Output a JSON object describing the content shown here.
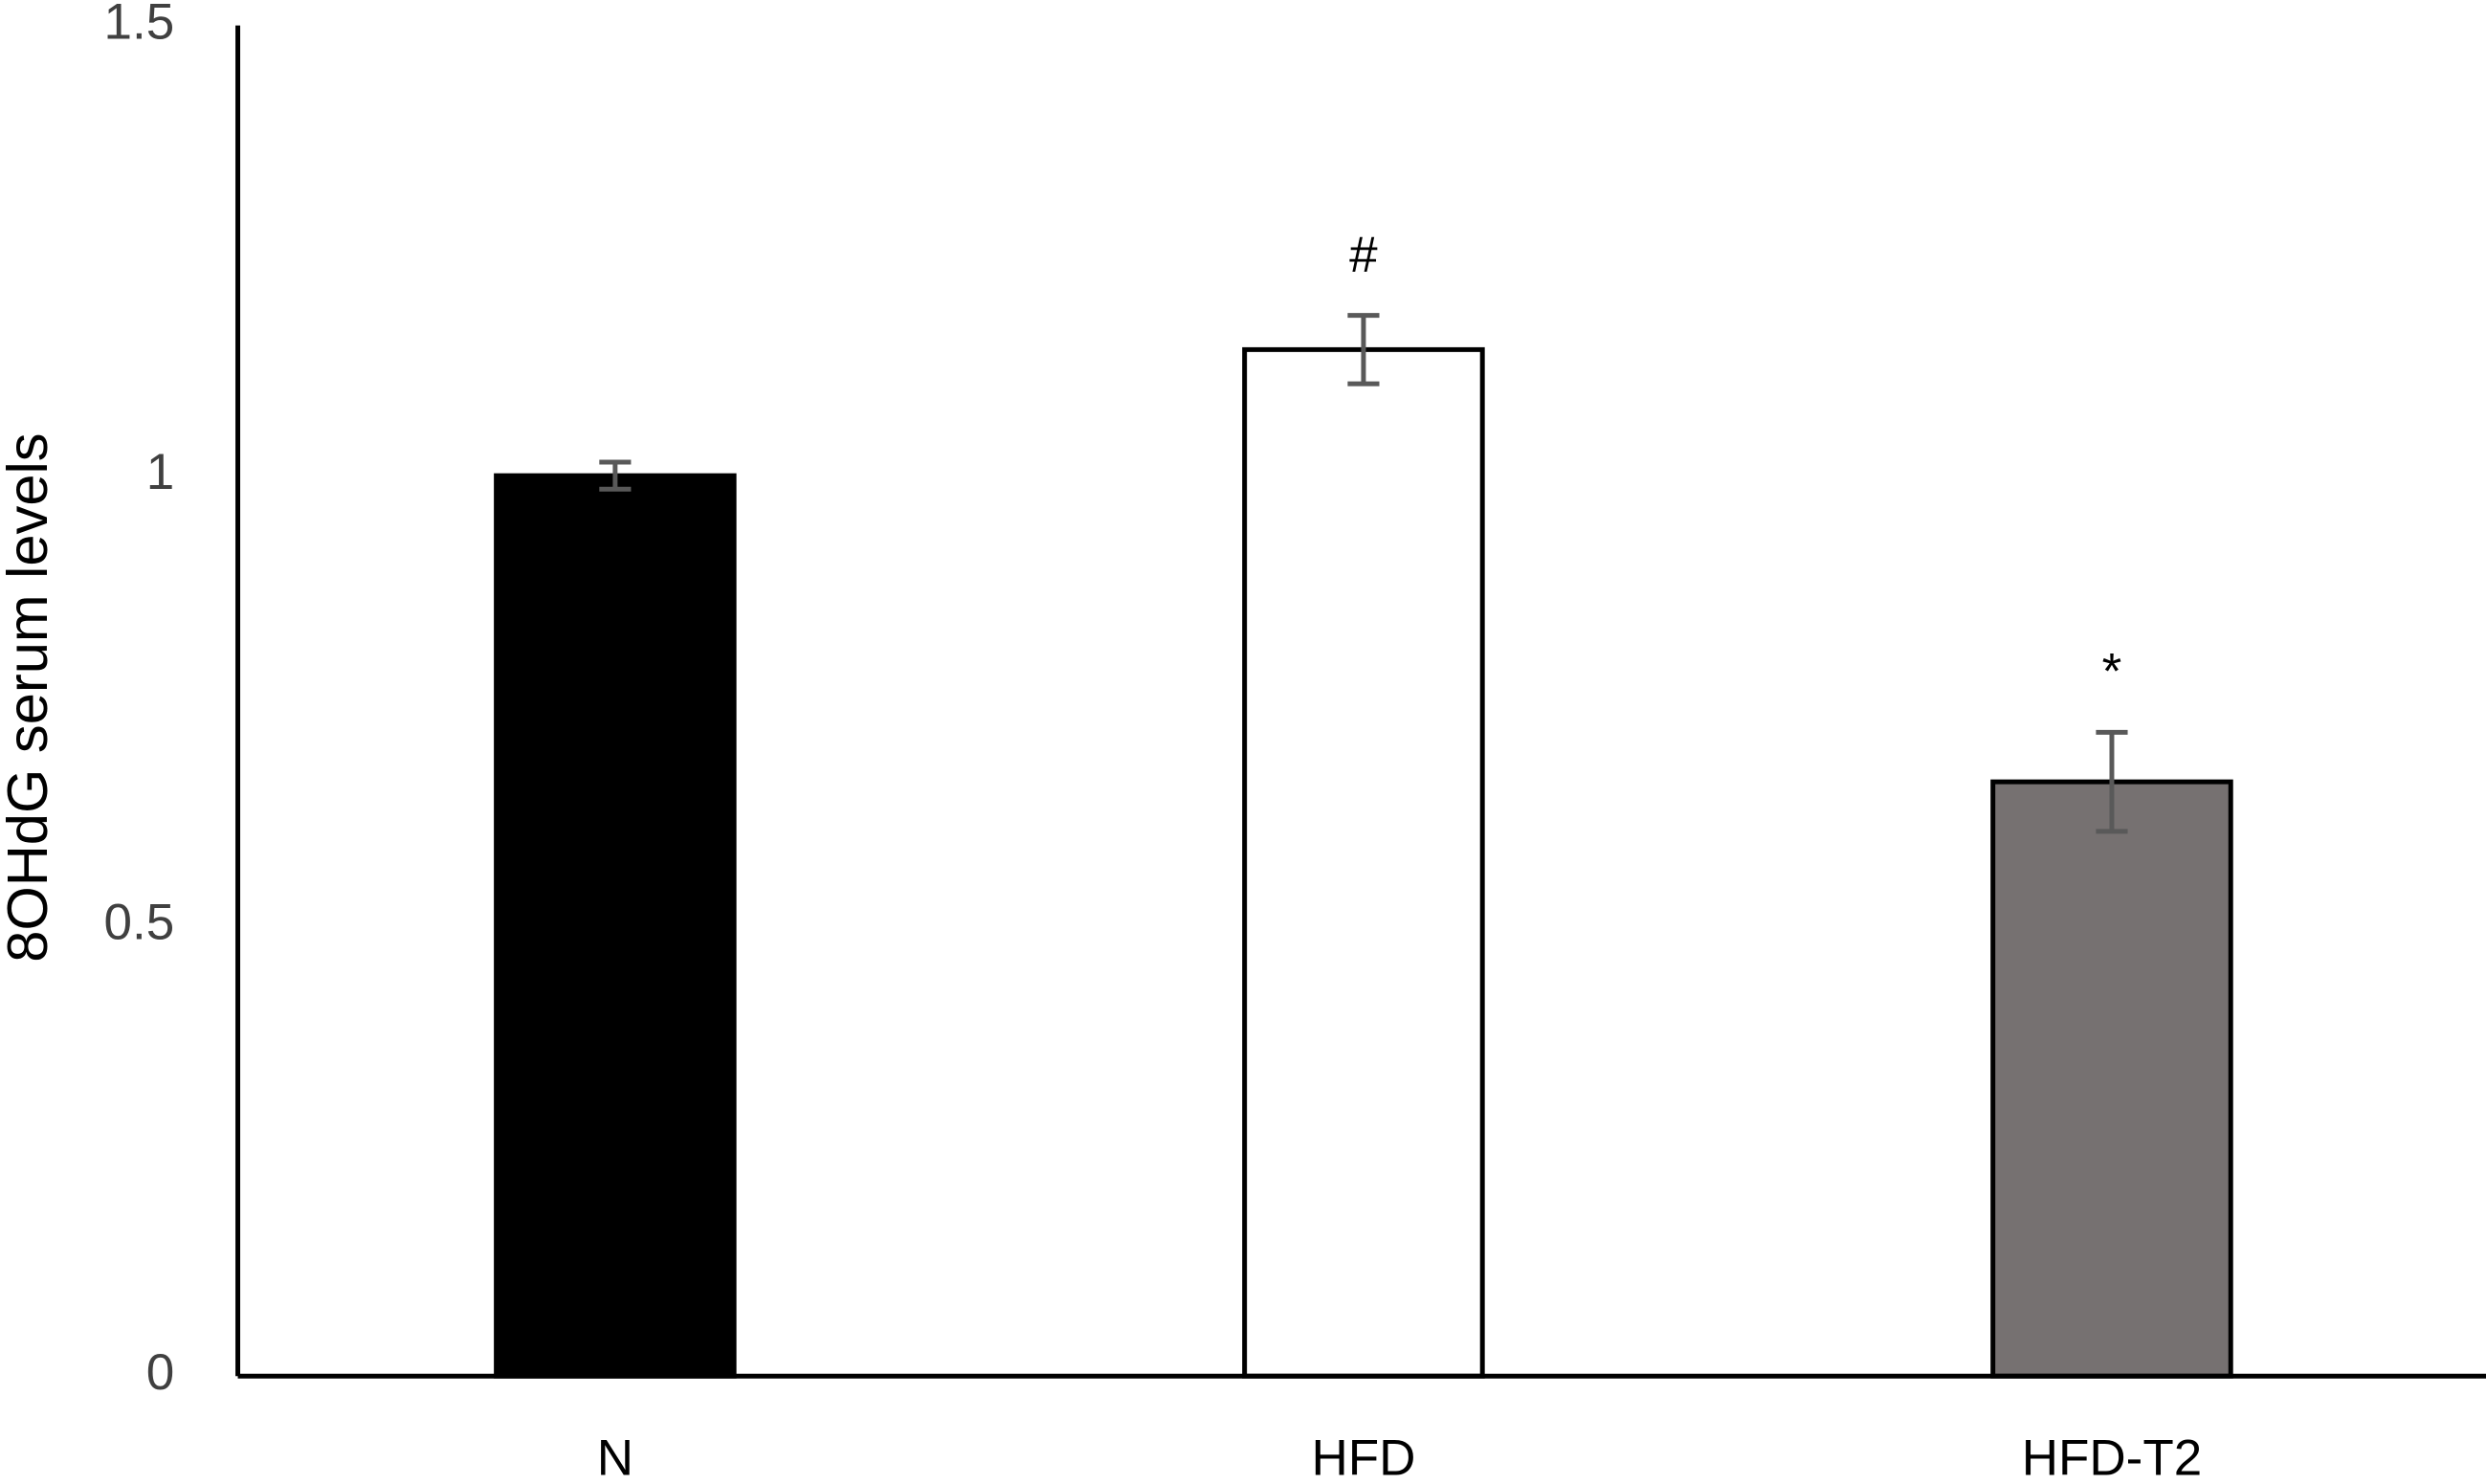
{
  "chart_data": {
    "type": "bar",
    "y_label": "8OHdG serum levels",
    "categories": [
      "N",
      "HFD",
      "HFD-T2"
    ],
    "values": [
      1.0,
      1.14,
      0.66
    ],
    "errors": [
      0.015,
      0.038,
      0.055
    ],
    "colors": [
      "#000000",
      "#ffffff",
      "#767171"
    ],
    "annotations": [
      null,
      "#",
      "*"
    ],
    "ylim": [
      0,
      1.5
    ],
    "yticks": [
      0,
      0.5,
      1,
      1.5
    ],
    "grid": false
  }
}
